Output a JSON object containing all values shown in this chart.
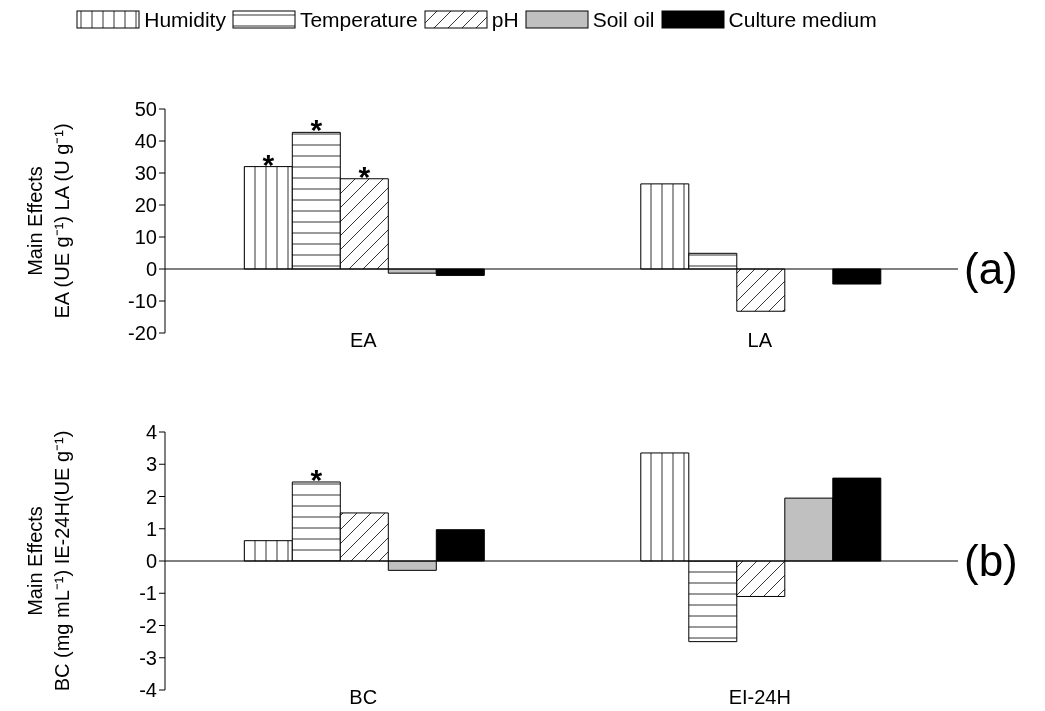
{
  "chart_data": [
    {
      "type": "bar",
      "categories": [
        "EA",
        "LA"
      ],
      "ylabel": "Main Effects\nEA (UE g⁻¹) LA (U g⁻¹)",
      "ylim": [
        -20,
        50
      ],
      "yticks": [
        -20,
        -10,
        0,
        10,
        20,
        30,
        40,
        50
      ],
      "legend": "top",
      "ref_lines": [
        {
          "axis": "y",
          "value": 0
        }
      ],
      "series": [
        {
          "name": "Humidity",
          "color": "#000000",
          "values": [
            32,
            26.6
          ],
          "value_labels": [
            "*",
            null
          ]
        },
        {
          "name": "Temperature",
          "color": "#000000",
          "values": [
            42.7,
            4.9
          ],
          "value_labels": [
            "*",
            null
          ]
        },
        {
          "name": "pH",
          "color": "#000000",
          "values": [
            28.2,
            -13.2
          ],
          "value_labels": [
            "*",
            null
          ]
        },
        {
          "name": "Soil oil",
          "color": "#c0c0c0",
          "values": [
            -1.3,
            0
          ]
        },
        {
          "name": "Culture medium",
          "color": "#000000",
          "values": [
            -2,
            -4.7
          ]
        }
      ],
      "annotations": [
        "(a)"
      ]
    },
    {
      "type": "bar",
      "categories": [
        "BC",
        "EI-24H"
      ],
      "ylabel": "Main Effects\nBC (mg mL⁻¹) IE-24H(UE g⁻¹)",
      "ylim": [
        -4,
        4
      ],
      "yticks": [
        -4,
        -3,
        -2,
        -1,
        0,
        1,
        2,
        3,
        4
      ],
      "ref_lines": [
        {
          "axis": "y",
          "value": 0
        }
      ],
      "series": [
        {
          "color": "#000000",
          "values": [
            0.63,
            3.35
          ]
        },
        {
          "color": "#000000",
          "values": [
            2.45,
            -2.5
          ],
          "value_labels": [
            "*",
            null
          ]
        },
        {
          "color": "#000000",
          "values": [
            1.49,
            -1.1
          ]
        },
        {
          "color": "#c0c0c0",
          "values": [
            -0.29,
            1.95
          ]
        },
        {
          "color": "#000000",
          "values": [
            0.97,
            2.57
          ]
        }
      ],
      "annotations": [
        "(b)"
      ]
    }
  ]
}
